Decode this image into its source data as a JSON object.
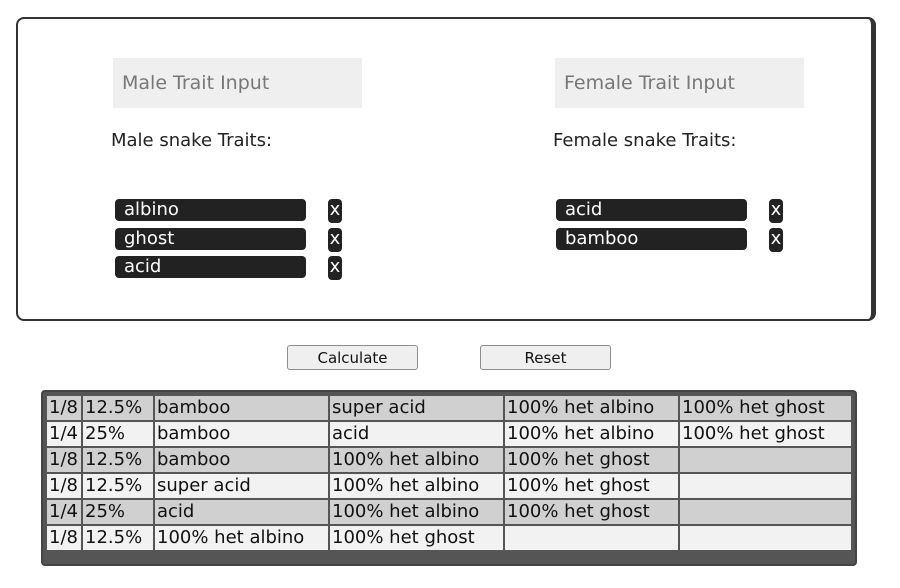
{
  "male": {
    "placeholder": "Male Trait Input",
    "heading": "Male snake Traits:",
    "traits": [
      "albino",
      "ghost",
      "acid"
    ]
  },
  "female": {
    "placeholder": "Female Trait Input",
    "heading": "Female snake Traits:",
    "traits": [
      "acid",
      "bamboo"
    ]
  },
  "remove_label": "x",
  "buttons": {
    "calculate": "Calculate",
    "reset": "Reset"
  },
  "results": [
    [
      "1/8",
      "12.5%",
      "bamboo",
      "super acid",
      "100% het albino",
      "100% het ghost"
    ],
    [
      "1/4",
      "25%",
      "bamboo",
      "acid",
      "100% het albino",
      "100% het ghost"
    ],
    [
      "1/8",
      "12.5%",
      "bamboo",
      "100% het albino",
      "100% het ghost",
      ""
    ],
    [
      "1/8",
      "12.5%",
      "super acid",
      "100% het albino",
      "100% het ghost",
      ""
    ],
    [
      "1/4",
      "25%",
      "acid",
      "100% het albino",
      "100% het ghost",
      ""
    ],
    [
      "1/8",
      "12.5%",
      "100% het albino",
      "100% het ghost",
      "",
      ""
    ]
  ]
}
